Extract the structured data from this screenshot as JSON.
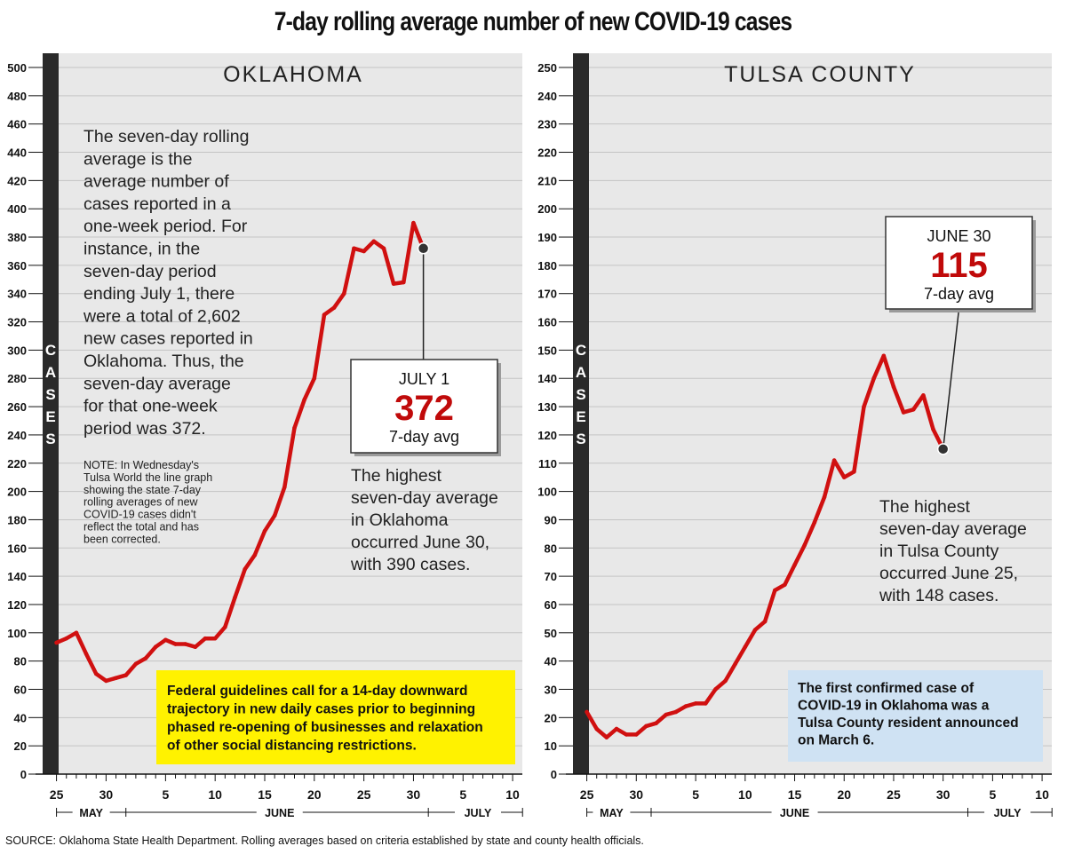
{
  "title": "7-day rolling average number of new COVID-19 cases",
  "source": "SOURCE: Oklahoma State Health Department. Rolling averages based on criteria established by state and county health officials.",
  "axis_label": "CASES",
  "colors": {
    "line": "#d01010",
    "panel": "#e8e8e8",
    "axis_bar": "#2a2a2a",
    "highlight_red": "#c00a0a",
    "note_yellow": "#fff200",
    "note_blue": "#cfe2f3"
  },
  "chart_data": [
    {
      "type": "line",
      "title": "OKLAHOMA",
      "ylabel": "CASES",
      "ylim": [
        0,
        500
      ],
      "yticks": [
        0,
        20,
        40,
        60,
        80,
        100,
        120,
        140,
        160,
        180,
        200,
        220,
        240,
        260,
        280,
        300,
        320,
        340,
        360,
        380,
        400,
        420,
        440,
        460,
        480,
        500
      ],
      "x_tick_labels": [
        {
          "label": "25",
          "day": 0
        },
        {
          "label": "30",
          "day": 5
        },
        {
          "label": "5",
          "day": 11
        },
        {
          "label": "10",
          "day": 16
        },
        {
          "label": "15",
          "day": 21
        },
        {
          "label": "20",
          "day": 26
        },
        {
          "label": "25",
          "day": 31
        },
        {
          "label": "30",
          "day": 36
        },
        {
          "label": "5",
          "day": 41
        },
        {
          "label": "10",
          "day": 46
        }
      ],
      "months": [
        {
          "label": "MAY",
          "day": 3.5
        },
        {
          "label": "JUNE",
          "day": 22.5
        },
        {
          "label": "JULY",
          "day": 42.5
        }
      ],
      "month_dividers": [
        0,
        7,
        37.5,
        47
      ],
      "xlim": [
        -0.5,
        46.8
      ],
      "series": [
        {
          "name": "Oklahoma 7-day avg",
          "x": [
            0,
            1,
            2,
            3,
            4,
            5,
            6,
            7,
            8,
            9,
            10,
            11,
            12,
            13,
            14,
            15,
            16,
            17,
            18,
            19,
            20,
            21,
            22,
            23,
            24,
            25,
            26,
            27,
            28,
            29,
            30,
            31,
            32,
            33,
            34,
            35,
            36,
            37
          ],
          "values": [
            93,
            96,
            100,
            85,
            71,
            66,
            68,
            70,
            78,
            82,
            90,
            95,
            92,
            92,
            90,
            96,
            96,
            104,
            125,
            145,
            155,
            172,
            183,
            203,
            245,
            265,
            280,
            325,
            330,
            340,
            372,
            370,
            377,
            372,
            347,
            348,
            390,
            372
          ]
        }
      ],
      "explanation": "The seven-day rolling average is the average number of cases reported in a one-week period. For instance, in the seven-day period ending July 1, there were a total of 2,602 new cases reported in Oklahoma. Thus, the seven-day average for that one-week period was 372.",
      "explanation_lines": [
        "The seven-day rolling",
        "average is the",
        "average number of",
        "cases reported in a",
        "one-week period. For",
        "instance, in the",
        "seven-day period",
        "ending July 1, there",
        "were a total of 2,602",
        "new cases reported in",
        "Oklahoma. Thus, the",
        "seven-day average",
        "for that one-week",
        "period was 372."
      ],
      "note_lines": [
        "NOTE: In Wednesday's",
        "Tulsa World the line graph",
        "showing the state 7-day",
        "rolling averages of new",
        "COVID-19 cases didn't",
        "reflect the total and has",
        "been corrected."
      ],
      "callout": {
        "date": "JULY 1",
        "value": "372",
        "label": "7-day avg",
        "point_day": 37,
        "point_value": 372
      },
      "peak_note_lines": [
        "The highest",
        "seven-day average",
        "in Oklahoma",
        "occurred June 30,",
        "with 390 cases."
      ],
      "info_box_lines": [
        "Federal guidelines call for a 14-day downward",
        "trajectory in new daily cases prior to beginning",
        "phased re-opening of businesses and relaxation",
        "of other social distancing restrictions."
      ]
    },
    {
      "type": "line",
      "title": "TULSA COUNTY",
      "ylabel": "CASES",
      "ylim": [
        0,
        250
      ],
      "yticks": [
        0,
        10,
        20,
        30,
        40,
        50,
        60,
        70,
        80,
        90,
        100,
        110,
        120,
        130,
        140,
        150,
        160,
        170,
        180,
        190,
        200,
        210,
        220,
        230,
        240,
        250
      ],
      "x_tick_labels": [
        {
          "label": "25",
          "day": 0
        },
        {
          "label": "30",
          "day": 5
        },
        {
          "label": "5",
          "day": 11
        },
        {
          "label": "10",
          "day": 16
        },
        {
          "label": "15",
          "day": 21
        },
        {
          "label": "20",
          "day": 26
        },
        {
          "label": "25",
          "day": 31
        },
        {
          "label": "30",
          "day": 36
        },
        {
          "label": "5",
          "day": 41
        },
        {
          "label": "10",
          "day": 46
        }
      ],
      "months": [
        {
          "label": "MAY",
          "day": 2.5
        },
        {
          "label": "JUNE",
          "day": 21
        },
        {
          "label": "JULY",
          "day": 42.5
        }
      ],
      "month_dividers": [
        0,
        6.5,
        38.5,
        47
      ],
      "xlim": [
        -0.5,
        46.8
      ],
      "series": [
        {
          "name": "Tulsa County 7-day avg",
          "x": [
            0,
            1,
            2,
            3,
            4,
            5,
            6,
            7,
            8,
            9,
            10,
            11,
            12,
            13,
            14,
            15,
            16,
            17,
            18,
            19,
            20,
            21,
            22,
            23,
            24,
            25,
            26,
            27,
            28,
            29,
            30,
            31,
            32,
            33,
            34,
            35,
            36
          ],
          "values": [
            22,
            16,
            13,
            16,
            14,
            14,
            17,
            18,
            21,
            22,
            24,
            25,
            25,
            30,
            33,
            39,
            45,
            51,
            54,
            65,
            67,
            74,
            81,
            89,
            98,
            111,
            105,
            107,
            130,
            140,
            148,
            137,
            128,
            129,
            134,
            122,
            115
          ]
        }
      ],
      "callout": {
        "date": "JUNE 30",
        "value": "115",
        "label": "7-day avg",
        "point_day": 36,
        "point_value": 115
      },
      "peak_note_lines": [
        "The highest",
        "seven-day average",
        "in Tulsa County",
        "occurred June 25,",
        "with 148 cases."
      ],
      "info_box_lines": [
        "The first confirmed case of",
        "COVID-19 in Oklahoma was a",
        "Tulsa County resident announced",
        "on March 6."
      ]
    }
  ]
}
